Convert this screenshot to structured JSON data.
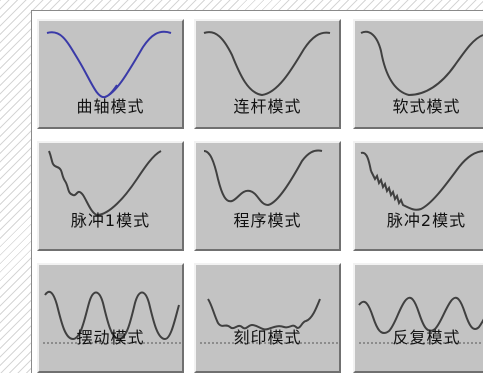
{
  "modes": [
    {
      "label": "曲轴模式",
      "icon": "crank-curve-icon"
    },
    {
      "label": "连杆模式",
      "icon": "link-curve-icon"
    },
    {
      "label": "软式模式",
      "icon": "soft-curve-icon"
    },
    {
      "label": "脉冲1模式",
      "icon": "pulse1-curve-icon"
    },
    {
      "label": "程序模式",
      "icon": "program-curve-icon"
    },
    {
      "label": "脉冲2模式",
      "icon": "pulse2-curve-icon"
    },
    {
      "label": "摆动模式",
      "icon": "swing-curve-icon"
    },
    {
      "label": "刻印模式",
      "icon": "stamp-curve-icon"
    },
    {
      "label": "反复模式",
      "icon": "repeat-curve-icon"
    }
  ],
  "colors": {
    "button_face": "#c3c3c3",
    "curve_blue": "#3a3aa8",
    "curve_dark": "#404040"
  }
}
